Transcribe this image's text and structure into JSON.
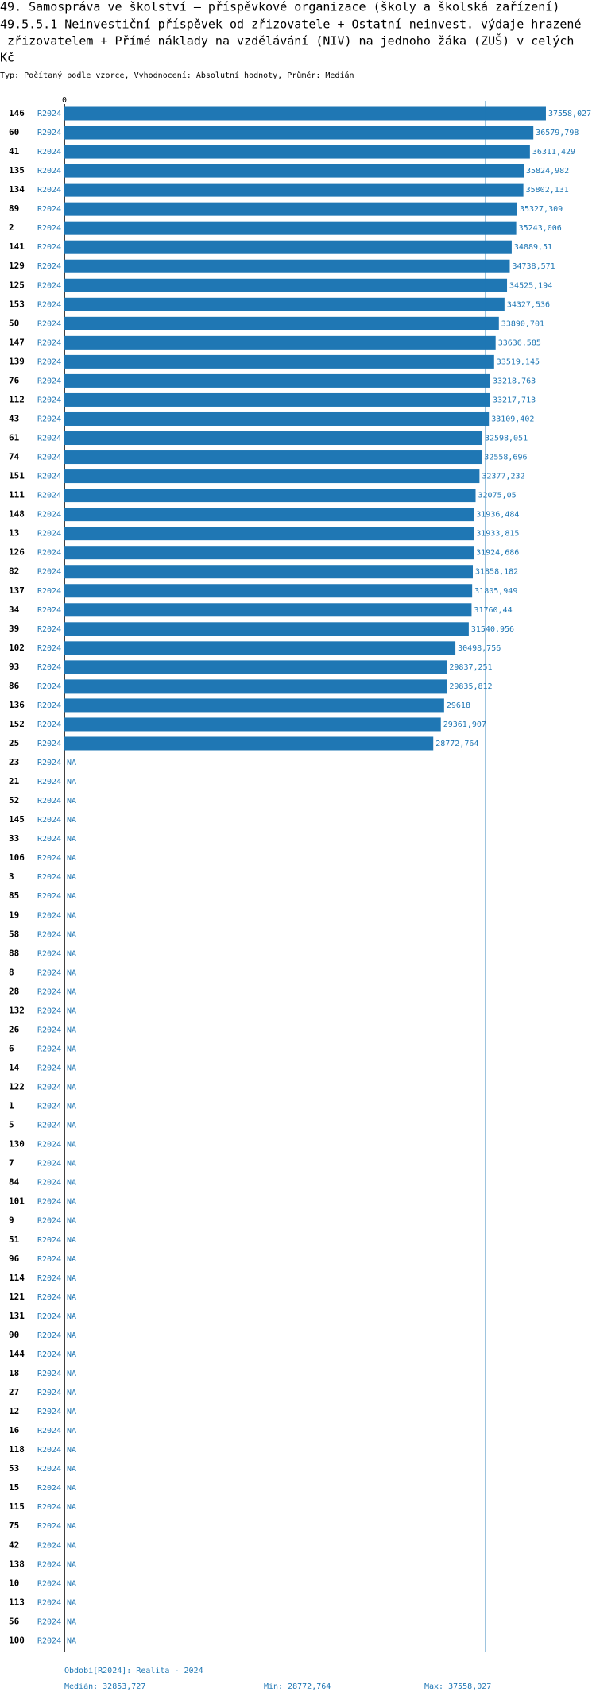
{
  "chart_data": {
    "type": "bar",
    "orientation": "horizontal",
    "title": [
      "49. Samospráva ve školství – příspěvkové organizace (školy a školská zařízení)",
      "49.5.5.1 Neinvestiční příspěvek od zřizovatele + Ostatní neinvest. výdaje hrazené",
      " zřizovatelem + Přímé náklady na vzdělávání (NIV) na jednoho žáka (ZUŠ) v celých",
      "Kč"
    ],
    "subtitle": "Typ: Počítaný podle vzorce, Vyhodnocení: Absolutní hodnoty, Průměr: Medián",
    "period": "R2024",
    "color": "#1f77b4",
    "xlim": [
      0,
      37560
    ],
    "xticks": [
      0
    ],
    "median_line": 32853.727,
    "categories": [
      "146",
      "60",
      "41",
      "135",
      "134",
      "89",
      "2",
      "141",
      "129",
      "125",
      "153",
      "50",
      "147",
      "139",
      "76",
      "112",
      "43",
      "61",
      "74",
      "151",
      "111",
      "148",
      "13",
      "126",
      "82",
      "137",
      "34",
      "39",
      "102",
      "93",
      "86",
      "136",
      "152",
      "25",
      "23",
      "21",
      "52",
      "145",
      "33",
      "106",
      "3",
      "85",
      "19",
      "58",
      "88",
      "8",
      "28",
      "132",
      "26",
      "6",
      "14",
      "122",
      "1",
      "5",
      "130",
      "7",
      "84",
      "101",
      "9",
      "51",
      "96",
      "114",
      "121",
      "131",
      "90",
      "144",
      "18",
      "27",
      "12",
      "16",
      "118",
      "53",
      "15",
      "115",
      "75",
      "42",
      "138",
      "10",
      "113",
      "56",
      "100"
    ],
    "values": [
      37558.027,
      36579.798,
      36311.429,
      35824.982,
      35802.131,
      35327.309,
      35243.006,
      34889.51,
      34738.571,
      34525.194,
      34327.536,
      33890.701,
      33636.585,
      33519.145,
      33218.763,
      33217.713,
      33109.402,
      32598.051,
      32558.696,
      32377.232,
      32075.05,
      31936.484,
      31933.815,
      31924.686,
      31858.182,
      31805.949,
      31760.44,
      31540.956,
      30498.756,
      29837.251,
      29835.812,
      29618,
      29361.907,
      28772.764,
      null,
      null,
      null,
      null,
      null,
      null,
      null,
      null,
      null,
      null,
      null,
      null,
      null,
      null,
      null,
      null,
      null,
      null,
      null,
      null,
      null,
      null,
      null,
      null,
      null,
      null,
      null,
      null,
      null,
      null,
      null,
      null,
      null,
      null,
      null,
      null,
      null,
      null,
      null,
      null,
      null,
      null,
      null,
      null,
      null,
      null,
      null
    ],
    "value_labels": [
      "37558,027",
      "36579,798",
      "36311,429",
      "35824,982",
      "35802,131",
      "35327,309",
      "35243,006",
      "34889,51",
      "34738,571",
      "34525,194",
      "34327,536",
      "33890,701",
      "33636,585",
      "33519,145",
      "33218,763",
      "33217,713",
      "33109,402",
      "32598,051",
      "32558,696",
      "32377,232",
      "32075,05",
      "31936,484",
      "31933,815",
      "31924,686",
      "31858,182",
      "31805,949",
      "31760,44",
      "31540,956",
      "30498,756",
      "29837,251",
      "29835,812",
      "29618",
      "29361,907",
      "28772,764",
      "NA",
      "NA",
      "NA",
      "NA",
      "NA",
      "NA",
      "NA",
      "NA",
      "NA",
      "NA",
      "NA",
      "NA",
      "NA",
      "NA",
      "NA",
      "NA",
      "NA",
      "NA",
      "NA",
      "NA",
      "NA",
      "NA",
      "NA",
      "NA",
      "NA",
      "NA",
      "NA",
      "NA",
      "NA",
      "NA",
      "NA",
      "NA",
      "NA",
      "NA",
      "NA",
      "NA",
      "NA",
      "NA",
      "NA",
      "NA",
      "NA",
      "NA",
      "NA",
      "NA",
      "NA",
      "NA",
      "NA"
    ],
    "footer": {
      "period": "Období[R2024]: Realita - 2024",
      "median": "Medián: 32853,727",
      "min": "Min: 28772,764",
      "max": "Max: 37558,027"
    }
  }
}
